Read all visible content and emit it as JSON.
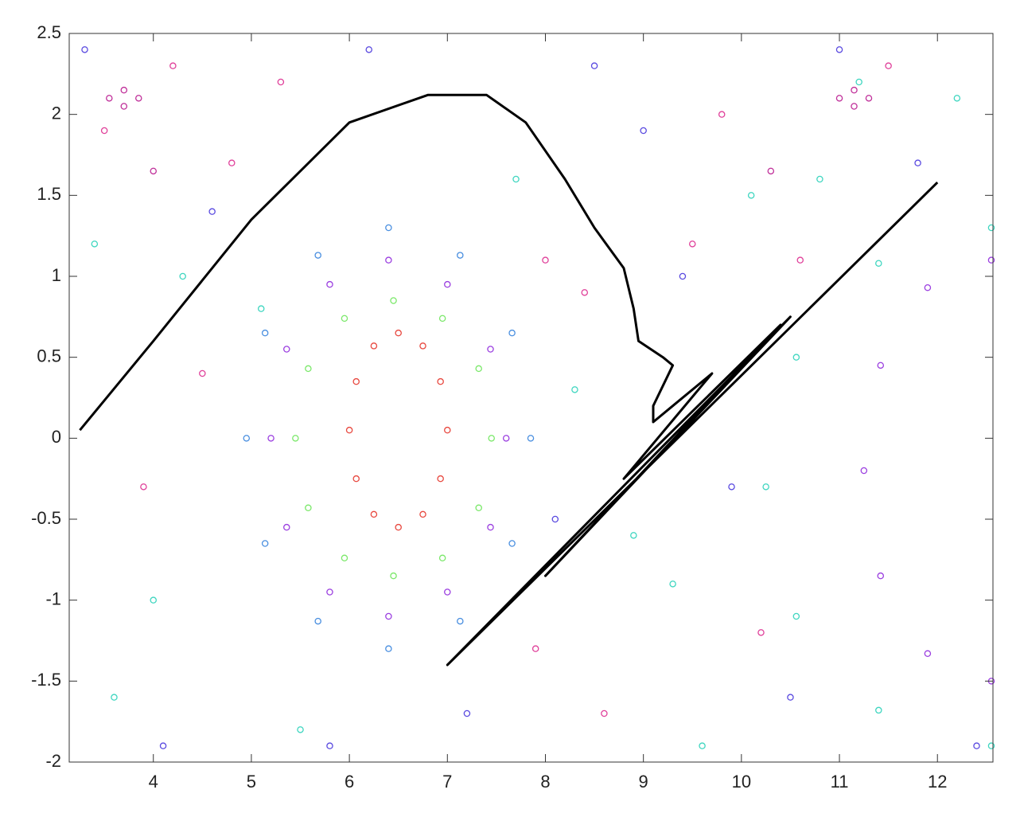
{
  "chart_data": {
    "type": "scatter",
    "xlim": [
      3.1416,
      12.5664
    ],
    "ylim": [
      -2,
      2.5
    ],
    "xticks": [
      4,
      5,
      6,
      7,
      8,
      9,
      10,
      11,
      12
    ],
    "yticks": [
      -2,
      -1.5,
      -1,
      -0.5,
      0,
      0.5,
      1,
      1.5,
      2,
      2.5
    ],
    "grid": false,
    "series": [
      {
        "type": "scatter",
        "color": "#e8483f",
        "x": [
          7.0,
          6.93,
          6.75,
          6.5,
          6.25,
          6.07,
          6.0,
          6.07,
          6.25,
          6.5,
          6.75,
          6.93
        ],
        "values": [
          0.05,
          0.35,
          0.57,
          0.65,
          0.57,
          0.35,
          0.05,
          -0.25,
          -0.47,
          -0.55,
          -0.47,
          -0.25
        ]
      },
      {
        "type": "scatter",
        "color": "#7be86a",
        "x": [
          7.45,
          7.32,
          6.95,
          6.45,
          5.95,
          5.58,
          5.45,
          5.58,
          5.95,
          6.45,
          6.95,
          7.32
        ],
        "values": [
          0,
          0.43,
          0.74,
          0.85,
          0.74,
          0.43,
          0,
          -0.43,
          -0.74,
          -0.85,
          -0.74,
          -0.43
        ]
      },
      {
        "type": "scatter",
        "color": "#9b3fe0",
        "x": [
          7.6,
          7.44,
          7.0,
          6.4,
          5.8,
          5.36,
          5.2,
          5.36,
          5.8,
          6.4,
          7.0,
          7.44
        ],
        "values": [
          0,
          0.55,
          0.95,
          1.1,
          0.95,
          0.55,
          0,
          -0.55,
          -0.95,
          -1.1,
          -0.95,
          -0.55
        ]
      },
      {
        "type": "scatter",
        "color": "#4a8fe0",
        "x": [
          7.85,
          7.66,
          7.13,
          6.4,
          5.68,
          5.14,
          4.95,
          5.14,
          5.68,
          6.4,
          7.13,
          7.66
        ],
        "values": [
          0,
          0.65,
          1.13,
          1.3,
          1.13,
          0.65,
          0,
          -0.65,
          -1.13,
          -1.3,
          -1.13,
          -0.65
        ]
      },
      {
        "type": "scatter",
        "color": "#9b3fe0",
        "x": [
          12.55,
          11.9,
          11.42,
          11.25,
          11.42,
          11.9,
          12.55
        ],
        "values": [
          1.1,
          0.93,
          0.45,
          -0.2,
          -0.85,
          -1.33,
          -1.5
        ]
      },
      {
        "type": "scatter",
        "color": "#3fd6c0",
        "x": [
          12.55,
          11.4,
          10.56,
          10.25,
          10.56,
          11.4,
          12.55
        ],
        "values": [
          1.3,
          1.08,
          0.5,
          -0.3,
          -1.1,
          -1.68,
          -1.9
        ]
      },
      {
        "type": "scatter",
        "color": "#c0309a",
        "x": [
          3.55,
          3.7,
          3.85,
          3.7,
          11.0,
          11.15,
          11.3,
          11.15,
          4.0,
          10.3
        ],
        "values": [
          2.1,
          2.15,
          2.1,
          2.05,
          2.1,
          2.15,
          2.1,
          2.05,
          1.65,
          1.65
        ]
      },
      {
        "type": "scatter",
        "color": "#e0409a",
        "x": [
          3.5,
          4.2,
          4.8,
          5.3,
          8.0,
          8.6,
          9.5,
          10.2,
          3.9,
          4.5,
          9.8,
          10.6,
          11.5,
          7.9,
          8.4
        ],
        "values": [
          1.9,
          2.3,
          1.7,
          2.2,
          1.1,
          -1.7,
          1.2,
          -1.2,
          -0.3,
          0.4,
          2.0,
          1.1,
          2.3,
          -1.3,
          0.9
        ]
      },
      {
        "type": "scatter",
        "color": "#3fd6c0",
        "x": [
          3.4,
          4.3,
          5.1,
          7.7,
          8.9,
          9.6,
          10.1,
          11.2,
          12.2,
          4.0,
          5.5,
          8.3,
          9.3,
          10.8,
          3.6
        ],
        "values": [
          1.2,
          1.0,
          0.8,
          1.6,
          -0.6,
          -1.9,
          1.5,
          2.2,
          2.1,
          -1.0,
          -1.8,
          0.3,
          -0.9,
          1.6,
          -1.6
        ]
      },
      {
        "type": "scatter",
        "color": "#5a4ae0",
        "x": [
          3.3,
          4.6,
          5.8,
          7.2,
          8.5,
          9.0,
          9.9,
          10.5,
          11.8,
          12.4,
          4.1,
          6.2,
          8.1,
          9.4,
          11.0
        ],
        "values": [
          2.4,
          1.4,
          -1.9,
          -1.7,
          2.3,
          1.9,
          -0.3,
          -1.6,
          1.7,
          -1.9,
          -1.9,
          2.4,
          -0.5,
          1.0,
          2.4
        ]
      },
      {
        "type": "line",
        "color": "#000000",
        "x": [
          3.25,
          4.0,
          5.0,
          6.0,
          6.8,
          7.4,
          7.8,
          8.2,
          8.5,
          8.8,
          8.9,
          8.95,
          9.2,
          9.3,
          9.1,
          9.1,
          9.3,
          9.7,
          8.8,
          10.4,
          8.0,
          10.5,
          7.0,
          12.0
        ],
        "values": [
          0.05,
          0.6,
          1.35,
          1.95,
          2.12,
          2.12,
          1.95,
          1.6,
          1.3,
          1.05,
          0.8,
          0.6,
          0.5,
          0.45,
          0.2,
          0.1,
          0.2,
          0.4,
          -0.25,
          0.7,
          -0.85,
          0.75,
          -1.4,
          1.58
        ]
      }
    ]
  }
}
